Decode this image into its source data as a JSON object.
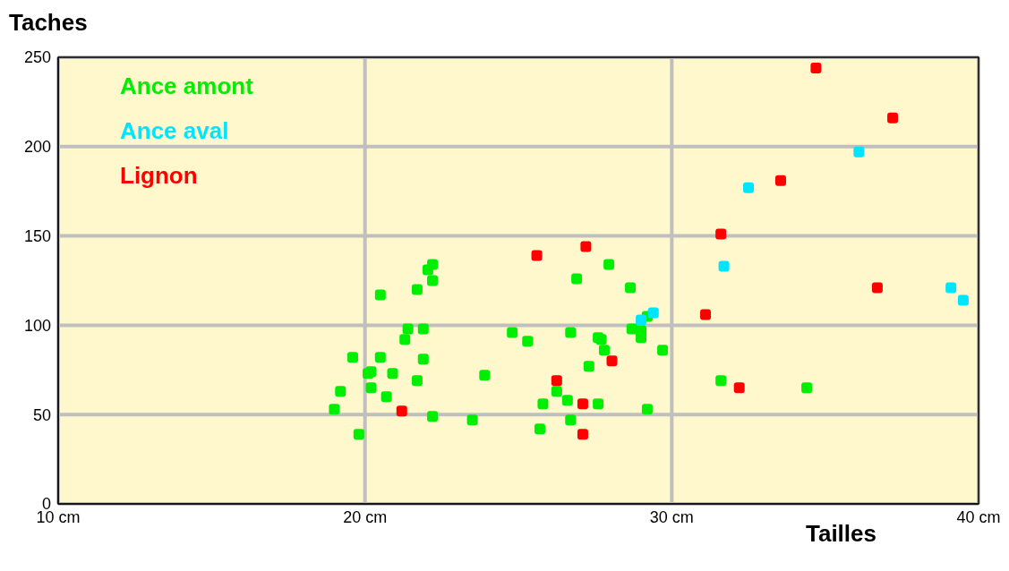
{
  "chart_data": {
    "type": "scatter",
    "xlabel": "Tailles",
    "ylabel": "Taches",
    "xlim": [
      10,
      40
    ],
    "xticks": [
      {
        "value": 10,
        "label": "10 cm"
      },
      {
        "value": 20,
        "label": "20 cm"
      },
      {
        "value": 30,
        "label": "30 cm"
      },
      {
        "value": 40,
        "label": "40 cm"
      }
    ],
    "ylim": [
      0,
      250
    ],
    "yticks": [
      0,
      50,
      100,
      150,
      200,
      250
    ],
    "grid": true,
    "legend": "top left",
    "marker": "square",
    "series": [
      {
        "name": "Ance amont",
        "color": "#00ee00",
        "x": [
          19.0,
          19.2,
          19.6,
          19.8,
          20.1,
          20.2,
          20.2,
          20.5,
          20.5,
          20.7,
          20.9,
          21.3,
          21.4,
          21.7,
          21.7,
          21.9,
          21.9,
          22.05,
          22.2,
          22.2,
          22.2,
          23.5,
          23.9,
          24.8,
          25.3,
          25.7,
          25.8,
          26.25,
          26.6,
          26.7,
          26.7,
          26.9,
          27.3,
          27.6,
          27.6,
          27.7,
          27.8,
          27.95,
          28.65,
          28.7,
          29.0,
          29.0,
          29.2,
          29.2,
          29.7,
          31.6,
          34.4
        ],
        "values": [
          53,
          63,
          82,
          39,
          73,
          74,
          65,
          82,
          117,
          60,
          73,
          92,
          98,
          69,
          120,
          98,
          81,
          131,
          134,
          125,
          49,
          47,
          72,
          96,
          91,
          42,
          56,
          63,
          58,
          96,
          47,
          126,
          77,
          56,
          93,
          92,
          86,
          134,
          121,
          98,
          97,
          93,
          53,
          105,
          86,
          69,
          65
        ]
      },
      {
        "name": "Ance aval",
        "color": "#00e5ff",
        "x": [
          29.0,
          29.4,
          31.7,
          32.5,
          36.1,
          39.1,
          39.5
        ],
        "values": [
          103,
          107,
          133,
          177,
          197,
          121,
          114
        ]
      },
      {
        "name": "Lignon",
        "color": "#ff0000",
        "x": [
          21.2,
          25.6,
          26.25,
          27.1,
          27.1,
          27.2,
          28.05,
          31.1,
          31.6,
          32.2,
          33.55,
          34.7,
          36.7,
          37.2
        ],
        "values": [
          52,
          139,
          69,
          56,
          39,
          144,
          80,
          106,
          151,
          65,
          181,
          244,
          121,
          216
        ]
      }
    ]
  }
}
